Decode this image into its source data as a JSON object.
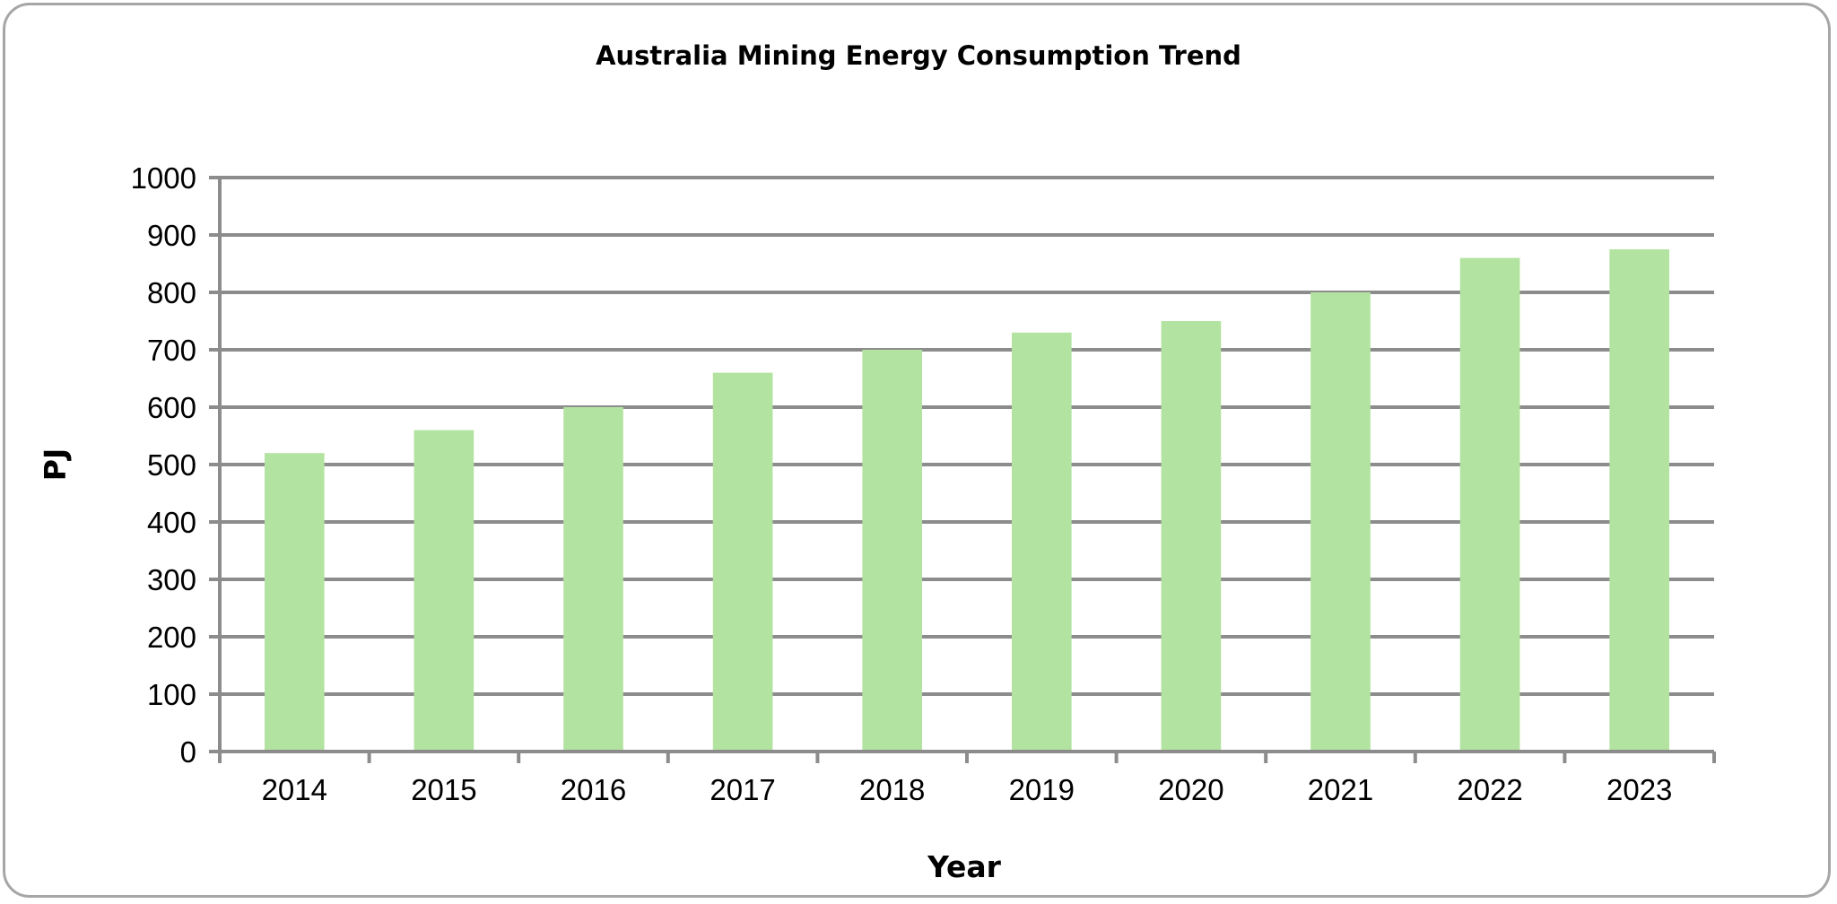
{
  "chart_data": {
    "type": "bar",
    "title": "Australia Mining Energy Consumption Trend",
    "xlabel": "Year",
    "ylabel": "PJ",
    "categories": [
      "2014",
      "2015",
      "2016",
      "2017",
      "2018",
      "2019",
      "2020",
      "2021",
      "2022",
      "2023"
    ],
    "values": [
      520,
      560,
      600,
      660,
      700,
      730,
      750,
      800,
      860,
      875
    ],
    "ylim": [
      0,
      1000
    ],
    "yticks": [
      0,
      100,
      200,
      300,
      400,
      500,
      600,
      700,
      800,
      900,
      1000
    ],
    "grid": true,
    "legend": "none",
    "colors": {
      "bar": "#b3e3a0",
      "grid": "#8c8c8c",
      "frame": "#a6a6a6"
    }
  }
}
